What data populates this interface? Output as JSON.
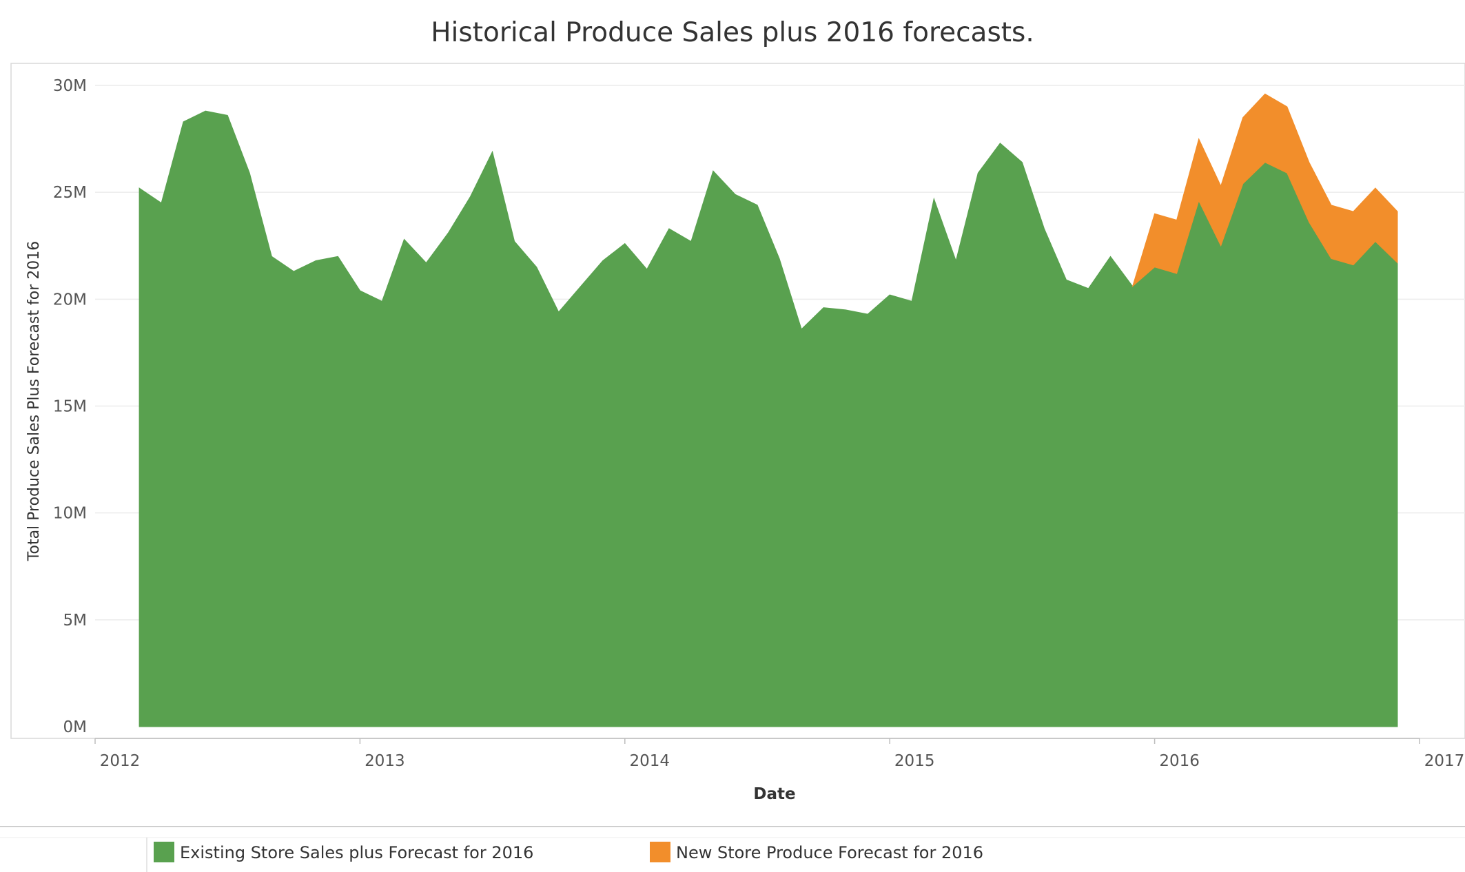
{
  "chart_data": {
    "type": "area",
    "title": "Historical Produce Sales plus 2016 forecasts.",
    "xlabel": "Date",
    "ylabel": "Total Produce Sales Plus Forecast for 2016",
    "x_ticks": [
      "2012",
      "2013",
      "2014",
      "2015",
      "2016",
      "2017"
    ],
    "y_ticks": [
      "0M",
      "5M",
      "10M",
      "15M",
      "20M",
      "25M",
      "30M"
    ],
    "ylim": [
      0,
      30000000
    ],
    "xlim": [
      "2012-01",
      "2017-01"
    ],
    "stacked": true,
    "grid": "horizontal",
    "legend_position": "bottom",
    "x": [
      "2012-03",
      "2012-04",
      "2012-05",
      "2012-06",
      "2012-07",
      "2012-08",
      "2012-09",
      "2012-10",
      "2012-11",
      "2012-12",
      "2013-01",
      "2013-02",
      "2013-03",
      "2013-04",
      "2013-05",
      "2013-06",
      "2013-07",
      "2013-08",
      "2013-09",
      "2013-10",
      "2013-11",
      "2013-12",
      "2014-01",
      "2014-02",
      "2014-03",
      "2014-04",
      "2014-05",
      "2014-06",
      "2014-07",
      "2014-08",
      "2014-09",
      "2014-10",
      "2014-11",
      "2014-12",
      "2015-01",
      "2015-02",
      "2015-03",
      "2015-04",
      "2015-05",
      "2015-06",
      "2015-07",
      "2015-08",
      "2015-09",
      "2015-10",
      "2015-11",
      "2015-12",
      "2016-01",
      "2016-02",
      "2016-03",
      "2016-04",
      "2016-05",
      "2016-06",
      "2016-07",
      "2016-08",
      "2016-09",
      "2016-10",
      "2016-11",
      "2016-12"
    ],
    "series": [
      {
        "name": "Existing Store Sales plus Forecast for 2016",
        "color": "#59a14f",
        "values": [
          25.2,
          24.5,
          28.3,
          28.8,
          28.6,
          25.9,
          22.0,
          21.3,
          21.8,
          22.0,
          20.4,
          19.9,
          22.8,
          21.7,
          23.1,
          24.8,
          26.9,
          22.7,
          21.5,
          19.4,
          20.6,
          21.8,
          22.6,
          21.4,
          23.3,
          22.7,
          26.0,
          24.9,
          24.4,
          21.9,
          18.6,
          19.6,
          19.5,
          19.3,
          20.2,
          19.9,
          24.7,
          21.8,
          25.9,
          27.3,
          26.4,
          23.3,
          20.9,
          20.5,
          22.0,
          20.6,
          21.5,
          21.2,
          24.6,
          22.5,
          25.4,
          26.4,
          25.9,
          23.6,
          21.9,
          21.6,
          22.7,
          21.7
        ]
      },
      {
        "name": "New Store Produce Forecast for 2016",
        "color": "#f28e2b",
        "values": [
          0,
          0,
          0,
          0,
          0,
          0,
          0,
          0,
          0,
          0,
          0,
          0,
          0,
          0,
          0,
          0,
          0,
          0,
          0,
          0,
          0,
          0,
          0,
          0,
          0,
          0,
          0,
          0,
          0,
          0,
          0,
          0,
          0,
          0,
          0,
          0,
          0,
          0,
          0,
          0,
          0,
          0,
          0,
          0,
          0,
          0,
          2.5,
          2.5,
          2.9,
          2.8,
          3.1,
          3.2,
          3.1,
          2.8,
          2.5,
          2.5,
          2.5,
          2.4
        ]
      }
    ],
    "value_unit": "M"
  }
}
